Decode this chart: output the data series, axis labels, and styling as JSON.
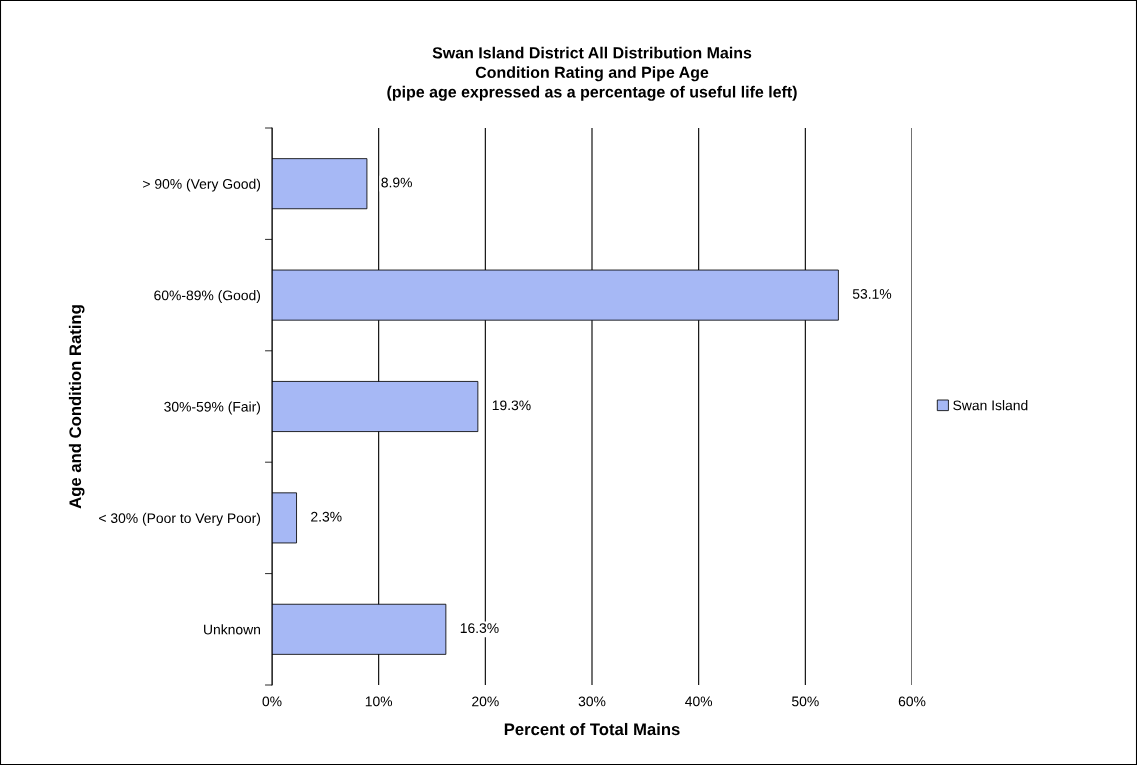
{
  "chart_data": {
    "type": "bar",
    "orientation": "horizontal",
    "title": "Swan Island District All Distribution Mains\nCondition Rating and Pipe Age\n(pipe age expressed as a percentage of useful life left)",
    "xlabel": "Percent of Total Mains",
    "ylabel": "Age and Condition Rating",
    "categories": [
      "> 90% (Very Good)",
      "60%-89% (Good)",
      "30%-59% (Fair)",
      "< 30% (Poor to Very Poor)",
      "Unknown"
    ],
    "series": [
      {
        "name": "Swan Island",
        "color": "#a6b8f5",
        "values": [
          8.9,
          53.1,
          19.3,
          2.3,
          16.3
        ],
        "value_labels": [
          "8.9%",
          "53.1%",
          "19.3%",
          "2.3%",
          "16.3%"
        ]
      }
    ],
    "xlim": [
      0,
      60
    ],
    "xticks": [
      {
        "value": 0,
        "label": "0%"
      },
      {
        "value": 10,
        "label": "10%"
      },
      {
        "value": 20,
        "label": "20%"
      },
      {
        "value": 30,
        "label": "30%"
      },
      {
        "value": 40,
        "label": "40%"
      },
      {
        "value": 50,
        "label": "50%"
      },
      {
        "value": 60,
        "label": "60%"
      }
    ],
    "grid": "x",
    "legend": "right"
  }
}
